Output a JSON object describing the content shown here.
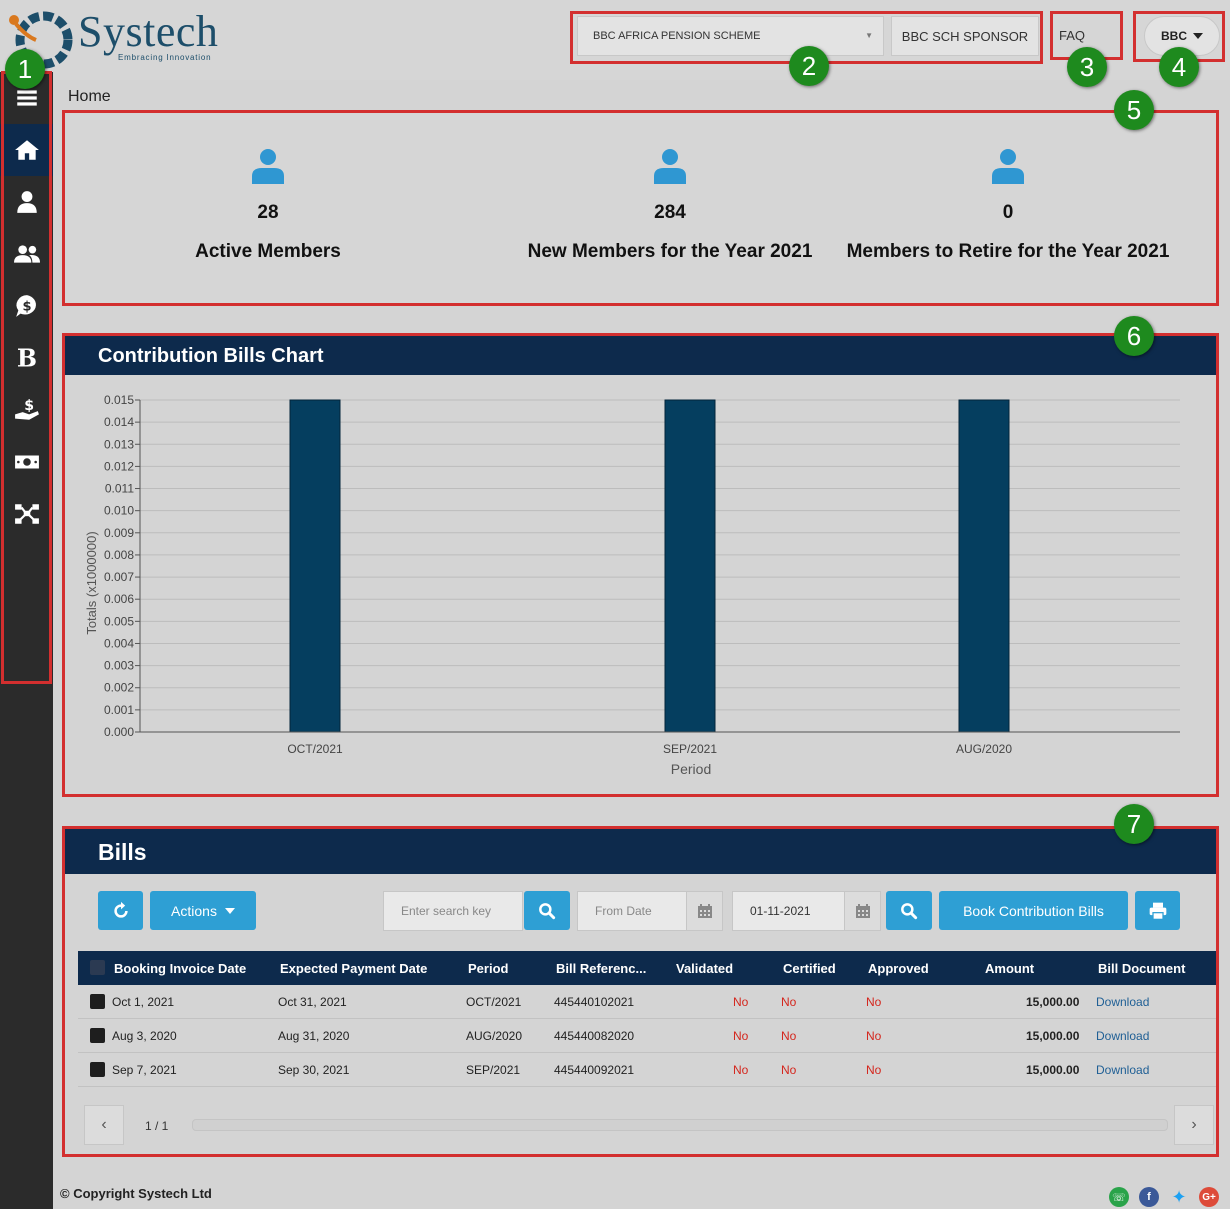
{
  "brand": {
    "name": "Systech",
    "tagline": "Embracing Innovation"
  },
  "header": {
    "scheme": "BBC AFRICA PENSION  SCHEME",
    "sponsor": "BBC SCH SPONSOR",
    "faq": "FAQ",
    "user": "BBC"
  },
  "sidebar": {
    "items": [
      {
        "icon": "menu-icon"
      },
      {
        "icon": "home-icon",
        "active": true
      },
      {
        "icon": "user-icon"
      },
      {
        "icon": "users-icon"
      },
      {
        "icon": "money-bubble-icon"
      },
      {
        "icon": "bold-b-icon"
      },
      {
        "icon": "hand-money-icon"
      },
      {
        "icon": "cash-icon"
      },
      {
        "icon": "network-icon"
      }
    ]
  },
  "breadcrumb": "Home",
  "stats": [
    {
      "value": "28",
      "label": "Active Members"
    },
    {
      "value": "284",
      "label": "New Members for the Year 2021"
    },
    {
      "value": "0",
      "label": "Members to Retire for the Year 2021"
    }
  ],
  "chart_panel": {
    "title": "Contribution Bills Chart"
  },
  "chart_data": {
    "type": "bar",
    "title": "Contribution Bills Chart",
    "categories": [
      "OCT/2021",
      "SEP/2021",
      "AUG/2020"
    ],
    "values": [
      0.015,
      0.015,
      0.015
    ],
    "xlabel": "Period",
    "ylabel": "Totals (x1000000)",
    "ylim": [
      0,
      0.015
    ],
    "yticks": [
      "0.000",
      "0.001",
      "0.002",
      "0.003",
      "0.004",
      "0.005",
      "0.006",
      "0.007",
      "0.008",
      "0.009",
      "0.010",
      "0.011",
      "0.012",
      "0.013",
      "0.014",
      "0.015"
    ],
    "grid": true,
    "bar_color": "#053e5f"
  },
  "bills": {
    "title": "Bills",
    "actions_label": "Actions",
    "search_placeholder": "Enter search key",
    "from_date_placeholder": "From Date",
    "to_date": "01-11-2021",
    "book_label": "Book Contribution Bills",
    "columns": [
      "Booking Invoice Date",
      "Expected Payment Date",
      "Period",
      "Bill Referenc...",
      "Validated",
      "Certified",
      "Approved",
      "Amount",
      "Bill Document"
    ],
    "rows": [
      {
        "booking": "Oct 1, 2021",
        "expected": "Oct 31, 2021",
        "period": "OCT/2021",
        "ref": "445440102021",
        "validated": "No",
        "certified": "No",
        "approved": "No",
        "amount": "15,000.00",
        "doc": "Download"
      },
      {
        "booking": "Aug 3, 2020",
        "expected": "Aug 31, 2020",
        "period": "AUG/2020",
        "ref": "445440082020",
        "validated": "No",
        "certified": "No",
        "approved": "No",
        "amount": "15,000.00",
        "doc": "Download"
      },
      {
        "booking": "Sep 7, 2021",
        "expected": "Sep 30, 2021",
        "period": "SEP/2021",
        "ref": "445440092021",
        "validated": "No",
        "certified": "No",
        "approved": "No",
        "amount": "15,000.00",
        "doc": "Download"
      }
    ],
    "pager": "1 / 1"
  },
  "footer": {
    "copyright": "© Copyright Systech Ltd"
  },
  "annotations": [
    "1",
    "2",
    "3",
    "4",
    "5",
    "6",
    "7"
  ]
}
